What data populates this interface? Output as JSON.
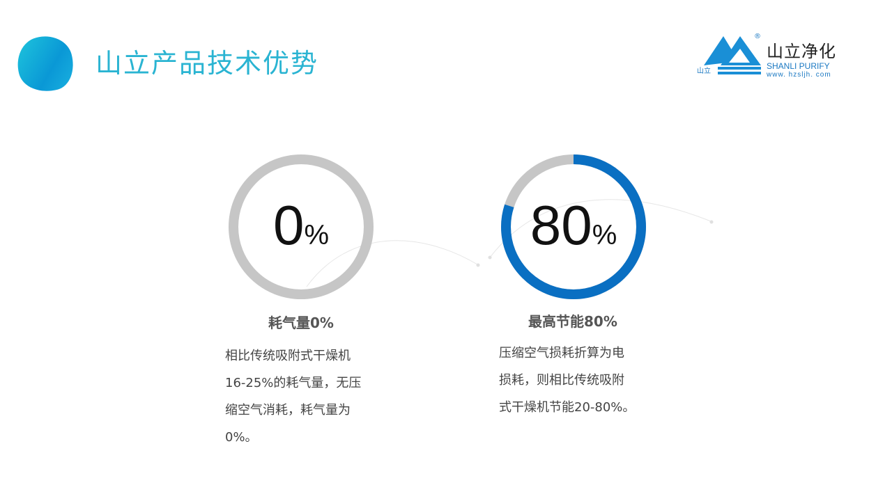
{
  "header": {
    "title": "山立产品技术优势"
  },
  "logo": {
    "cn": "山立净化",
    "en": "SHANLI PURIFY",
    "url": "www. hzsljh. com",
    "small": "山立",
    "reg": "®",
    "color": "#1a78c2"
  },
  "colors": {
    "accent": "#2ab4d2",
    "gauge_fill": "#0a6fc2",
    "gauge_track": "#c6c6c6"
  },
  "cards": [
    {
      "value": "0",
      "unit": "%",
      "percent": 0,
      "heading": "耗气量0%",
      "lines": [
        "相比传统吸附式干燥机",
        "16-25%的耗气量，无压",
        "缩空气消耗，耗气量为",
        "0%。"
      ]
    },
    {
      "value": "80",
      "unit": "%",
      "percent": 80,
      "heading": "最高节能80%",
      "lines": [
        "压缩空气损耗折算为电",
        "损耗，则相比传统吸附",
        "式干燥机节能20-80%。"
      ]
    }
  ]
}
